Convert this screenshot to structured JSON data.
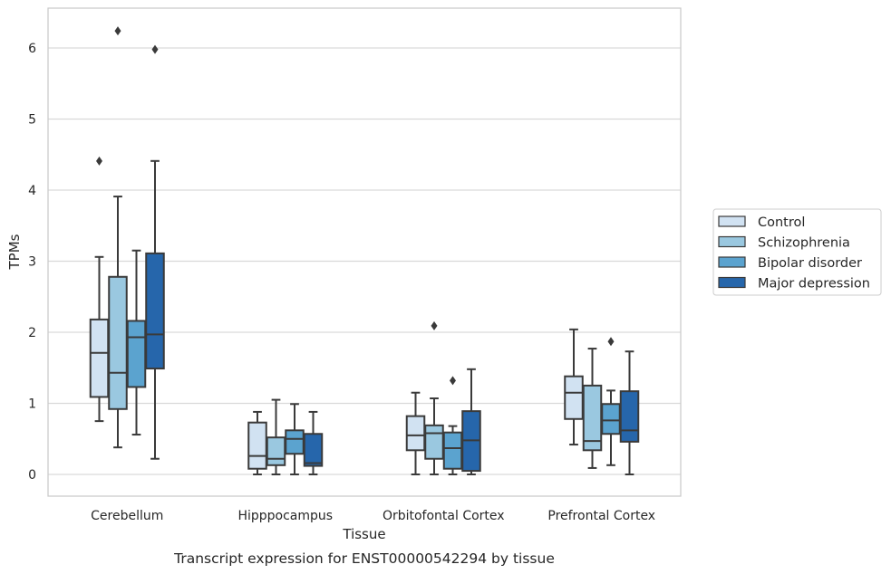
{
  "caption": "Transcript expression for ENST00000542294 by tissue",
  "chart_data": {
    "type": "box",
    "xlabel": "Tissue",
    "ylabel": "TPMs",
    "ylim": [
      -0.3,
      6.55
    ],
    "yticks": [
      0,
      1,
      2,
      3,
      4,
      5,
      6
    ],
    "grid": "horizontal",
    "legend_position": "right",
    "categories": [
      "Cerebellum",
      "Hipppocampus",
      "Orbitofontal Cortex",
      "Prefrontal Cortex"
    ],
    "series": [
      {
        "name": "Control",
        "color": "#d1e2f2",
        "boxes": [
          {
            "whisker_low": 0.75,
            "q1": 1.09,
            "median": 1.71,
            "q3": 2.18,
            "whisker_high": 3.06,
            "outliers": [
              4.41
            ]
          },
          {
            "whisker_low": 0.0,
            "q1": 0.08,
            "median": 0.26,
            "q3": 0.73,
            "whisker_high": 0.88,
            "outliers": []
          },
          {
            "whisker_low": 0.0,
            "q1": 0.34,
            "median": 0.55,
            "q3": 0.82,
            "whisker_high": 1.15,
            "outliers": []
          },
          {
            "whisker_low": 0.42,
            "q1": 0.78,
            "median": 1.15,
            "q3": 1.38,
            "whisker_high": 2.04,
            "outliers": []
          }
        ]
      },
      {
        "name": "Schizophrenia",
        "color": "#9ac8e0",
        "boxes": [
          {
            "whisker_low": 0.38,
            "q1": 0.92,
            "median": 1.43,
            "q3": 2.78,
            "whisker_high": 3.91,
            "outliers": [
              6.24
            ]
          },
          {
            "whisker_low": 0.0,
            "q1": 0.13,
            "median": 0.22,
            "q3": 0.52,
            "whisker_high": 1.05,
            "outliers": []
          },
          {
            "whisker_low": 0.0,
            "q1": 0.22,
            "median": 0.58,
            "q3": 0.69,
            "whisker_high": 1.07,
            "outliers": [
              2.09
            ]
          },
          {
            "whisker_low": 0.09,
            "q1": 0.34,
            "median": 0.47,
            "q3": 1.25,
            "whisker_high": 1.77,
            "outliers": []
          }
        ]
      },
      {
        "name": "Bipolar disorder",
        "color": "#5ba3cf",
        "boxes": [
          {
            "whisker_low": 0.56,
            "q1": 1.23,
            "median": 1.93,
            "q3": 2.16,
            "whisker_high": 3.15,
            "outliers": []
          },
          {
            "whisker_low": 0.0,
            "q1": 0.29,
            "median": 0.5,
            "q3": 0.62,
            "whisker_high": 0.99,
            "outliers": []
          },
          {
            "whisker_low": 0.0,
            "q1": 0.08,
            "median": 0.37,
            "q3": 0.59,
            "whisker_high": 0.68,
            "outliers": [
              1.32
            ]
          },
          {
            "whisker_low": 0.13,
            "q1": 0.57,
            "median": 0.76,
            "q3": 0.99,
            "whisker_high": 1.18,
            "outliers": [
              1.87
            ]
          }
        ]
      },
      {
        "name": "Major depression",
        "color": "#2666ab",
        "boxes": [
          {
            "whisker_low": 0.22,
            "q1": 1.49,
            "median": 1.97,
            "q3": 3.11,
            "whisker_high": 4.41,
            "outliers": [
              5.98
            ]
          },
          {
            "whisker_low": 0.0,
            "q1": 0.12,
            "median": 0.16,
            "q3": 0.57,
            "whisker_high": 0.88,
            "outliers": []
          },
          {
            "whisker_low": 0.0,
            "q1": 0.05,
            "median": 0.48,
            "q3": 0.89,
            "whisker_high": 1.48,
            "outliers": []
          },
          {
            "whisker_low": 0.0,
            "q1": 0.46,
            "median": 0.62,
            "q3": 1.17,
            "whisker_high": 1.73,
            "outliers": []
          }
        ]
      }
    ]
  }
}
